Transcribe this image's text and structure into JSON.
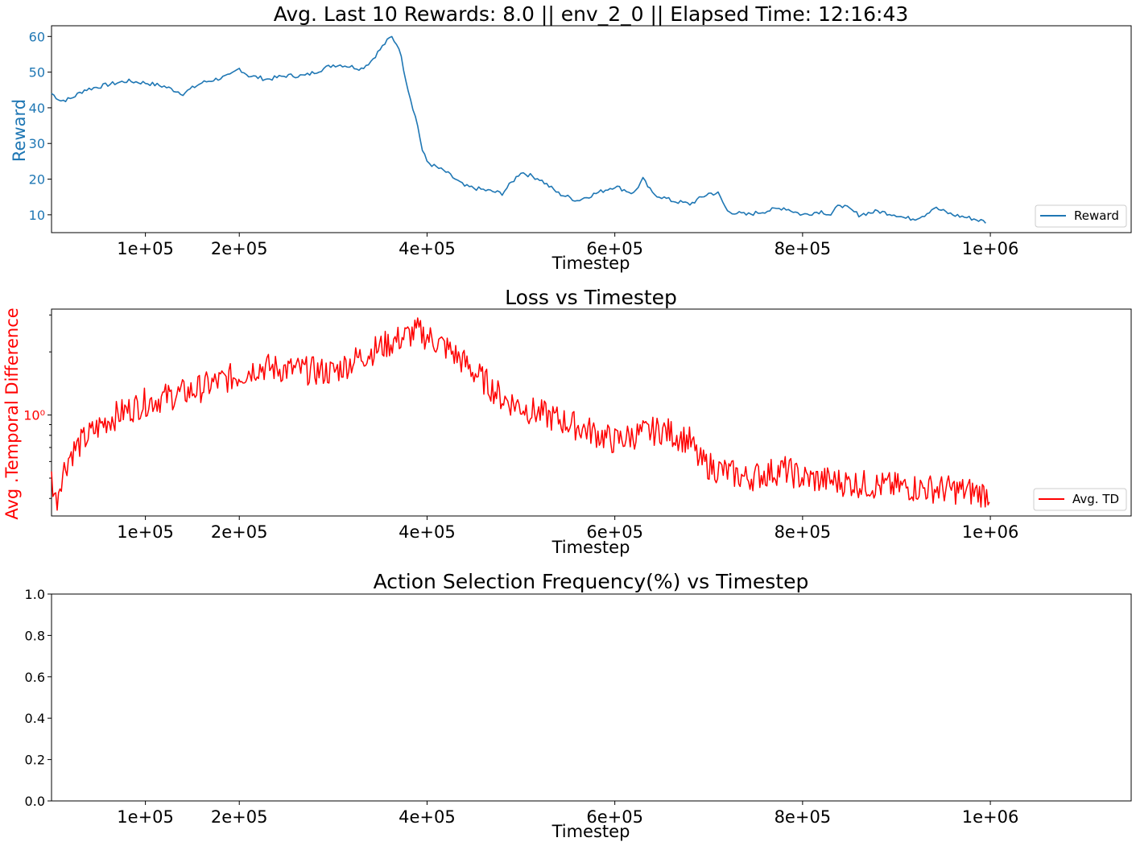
{
  "colors": {
    "reward": "#1f77b4",
    "td": "#ff0000",
    "axis": "#000000",
    "legend_border": "#cccccc"
  },
  "chart_data": [
    {
      "type": "line",
      "title": "Avg. Last 10 Rewards: 8.0 || env_2_0 || Elapsed Time: 12:16:43",
      "xlabel": "Timestep",
      "ylabel": "Reward",
      "xlim": [
        0,
        1150000
      ],
      "ylim": [
        5,
        63
      ],
      "xticks": [
        100000,
        200000,
        400000,
        600000,
        800000,
        1000000
      ],
      "xtick_labels": [
        "1e+05",
        "2e+05",
        "4e+05",
        "6e+05",
        "8e+05",
        "1e+06"
      ],
      "yticks": [
        10,
        20,
        30,
        40,
        50,
        60
      ],
      "ytick_labels": [
        "10",
        "20",
        "30",
        "40",
        "50",
        "60"
      ],
      "legend": {
        "position": "bottom-right",
        "entries": [
          "Reward"
        ]
      },
      "grid": false,
      "series": [
        {
          "name": "Reward",
          "x": [
            0,
            10000,
            20000,
            35000,
            60000,
            80000,
            100000,
            120000,
            140000,
            160000,
            190000,
            200000,
            210000,
            230000,
            250000,
            270000,
            300000,
            310000,
            330000,
            340000,
            355000,
            362000,
            370000,
            380000,
            390000,
            395000,
            400000,
            405000,
            420000,
            440000,
            460000,
            480000,
            500000,
            520000,
            540000,
            560000,
            580000,
            600000,
            620000,
            630000,
            640000,
            660000,
            680000,
            700000,
            710000,
            720000,
            740000,
            760000,
            780000,
            800000,
            820000,
            830000,
            840000,
            860000,
            880000,
            900000,
            910000,
            920000,
            930000,
            940000,
            960000,
            980000,
            995000
          ],
          "values": [
            44,
            42,
            42.5,
            45,
            46.5,
            47.5,
            47,
            46,
            44,
            47,
            49,
            51,
            49,
            48,
            49,
            49,
            52,
            52,
            51,
            53,
            58,
            60,
            57,
            45,
            35,
            28,
            25,
            24,
            22,
            18,
            17,
            16,
            22,
            20,
            16,
            14,
            16,
            18,
            16,
            20,
            16,
            14,
            13,
            16,
            16,
            11,
            10,
            11,
            12,
            10,
            11,
            10,
            13,
            10,
            11,
            10,
            9,
            9,
            10,
            12,
            10,
            9,
            8
          ]
        }
      ]
    },
    {
      "type": "line",
      "title": "Loss vs Timestep",
      "xlabel": "Timestep",
      "ylabel": "Avg .Temporal Difference",
      "xlim": [
        0,
        1150000
      ],
      "yscale": "log",
      "ylim": [
        0.33,
        3.2
      ],
      "xticks": [
        100000,
        200000,
        400000,
        600000,
        800000,
        1000000
      ],
      "xtick_labels": [
        "1e+05",
        "2e+05",
        "4e+05",
        "6e+05",
        "8e+05",
        "1e+06"
      ],
      "yticks": [
        1
      ],
      "ytick_labels": [
        "10⁰"
      ],
      "legend": {
        "position": "bottom-right",
        "entries": [
          "Avg. TD"
        ]
      },
      "grid": false,
      "series": [
        {
          "name": "Avg. TD",
          "x": [
            0,
            5000,
            10000,
            20000,
            40000,
            60000,
            80000,
            100000,
            150000,
            200000,
            220000,
            250000,
            300000,
            330000,
            360000,
            390000,
            420000,
            450000,
            480000,
            510000,
            540000,
            570000,
            600000,
            620000,
            650000,
            680000,
            690000,
            710000,
            740000,
            780000,
            800000,
            840000,
            880000,
            920000,
            960000,
            1000000
          ],
          "values": [
            0.5,
            0.38,
            0.5,
            0.65,
            0.8,
            0.95,
            1.05,
            1.15,
            1.3,
            1.55,
            1.7,
            1.65,
            1.6,
            1.9,
            2.2,
            2.5,
            2.1,
            1.6,
            1.2,
            1.05,
            0.95,
            0.85,
            0.75,
            0.8,
            0.85,
            0.75,
            0.6,
            0.55,
            0.5,
            0.55,
            0.5,
            0.48,
            0.46,
            0.45,
            0.44,
            0.42
          ]
        }
      ]
    },
    {
      "type": "line",
      "title": "Action Selection Frequency(%) vs Timestep",
      "xlabel": "Timestep",
      "ylabel": "",
      "xlim": [
        0,
        1150000
      ],
      "ylim": [
        0,
        1
      ],
      "xticks": [
        100000,
        200000,
        400000,
        600000,
        800000,
        1000000
      ],
      "xtick_labels": [
        "1e+05",
        "2e+05",
        "4e+05",
        "6e+05",
        "8e+05",
        "1e+06"
      ],
      "yticks": [
        0,
        0.2,
        0.4,
        0.6,
        0.8,
        1.0
      ],
      "ytick_labels": [
        "0.0",
        "0.2",
        "0.4",
        "0.6",
        "0.8",
        "1.0"
      ],
      "grid": false,
      "series": []
    }
  ]
}
